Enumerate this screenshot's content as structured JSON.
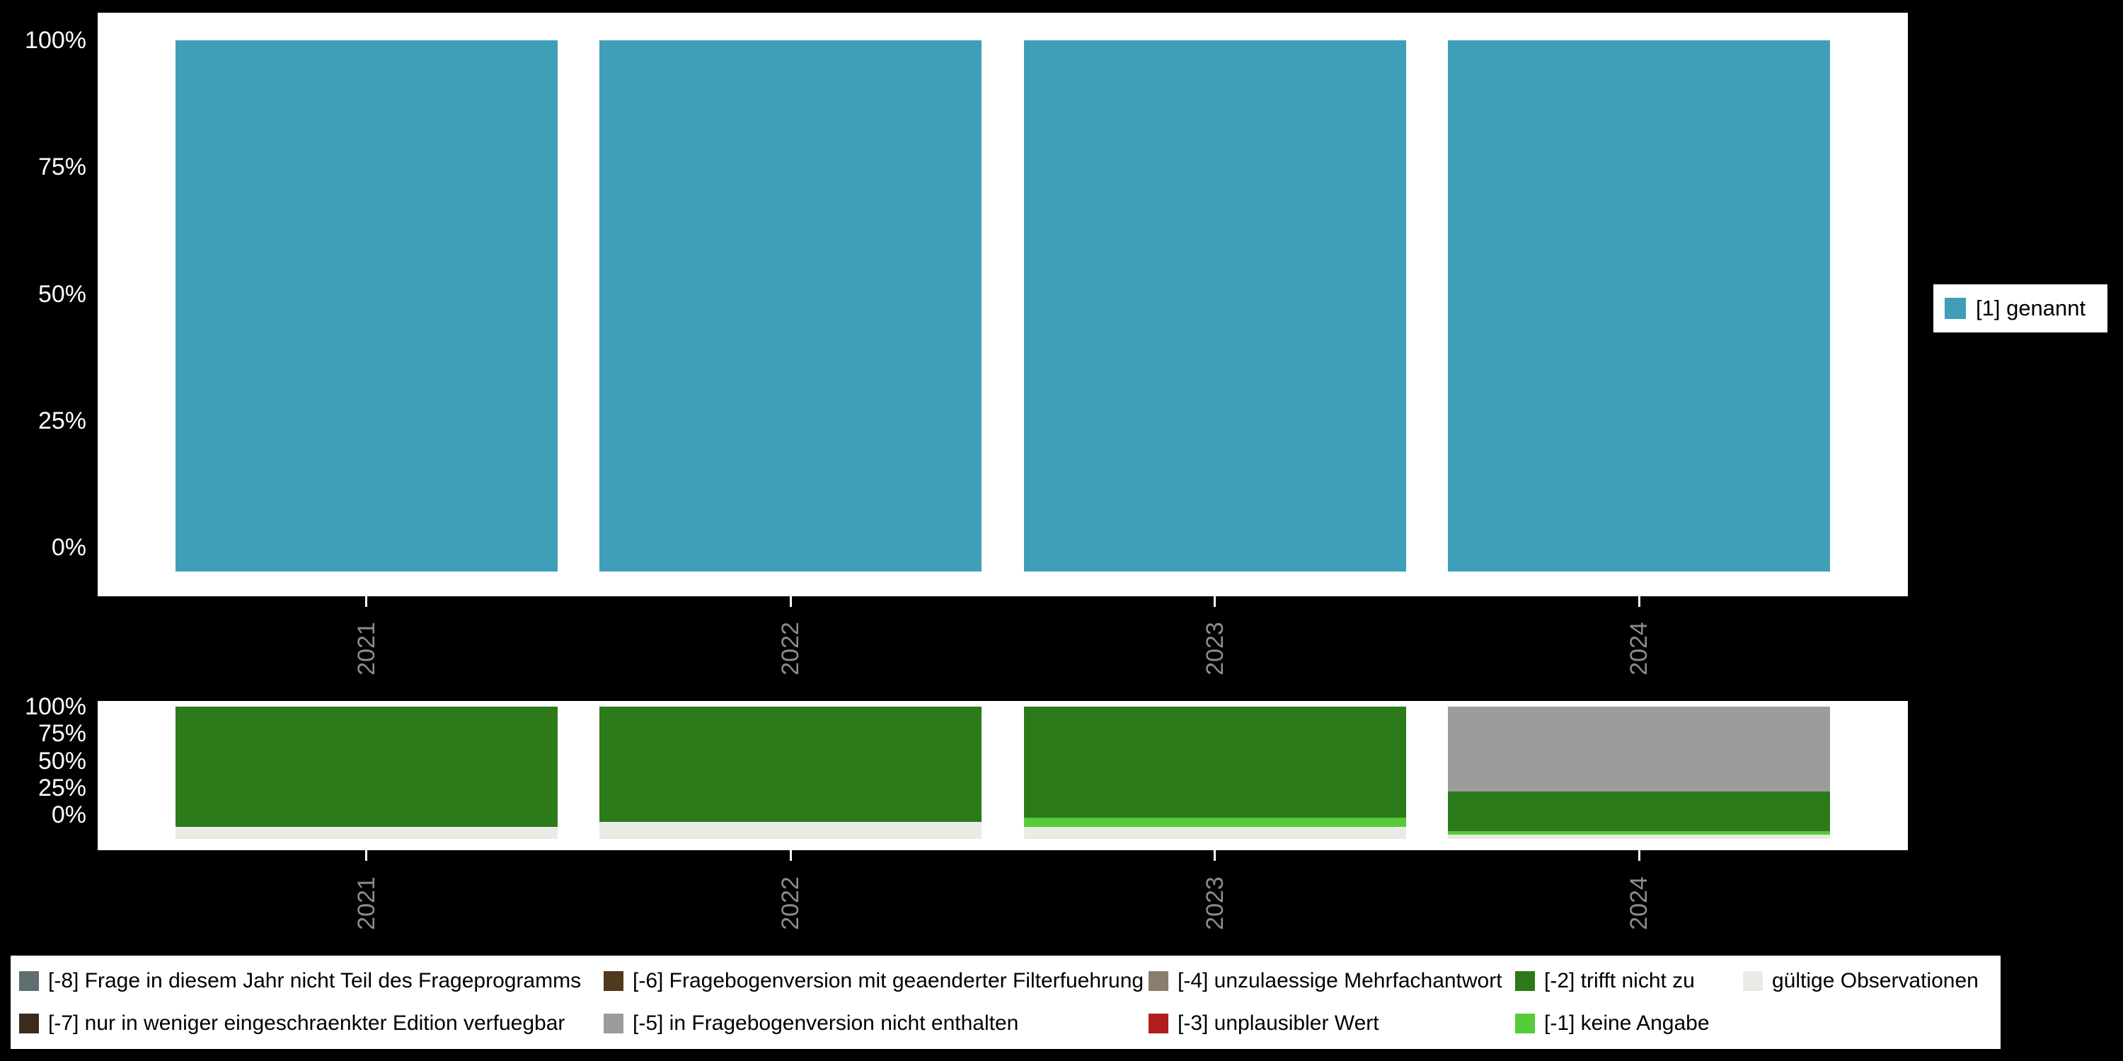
{
  "background": "#000000",
  "panel_bg": "#ffffff",
  "axis": {
    "ytick_color": "#ffffff",
    "xtick_label_color": "#8c8c8c"
  },
  "chart_data": [
    {
      "type": "bar",
      "stacked": true,
      "title": "",
      "categories": [
        "2021",
        "2022",
        "2023",
        "2024"
      ],
      "series": [
        {
          "name": "[1] genannt",
          "color": "#3f9fb8",
          "values": [
            100,
            100,
            100,
            100
          ]
        }
      ],
      "ylim": [
        0,
        100
      ],
      "yticks": [
        "100%",
        "75%",
        "50%",
        "25%",
        "0%"
      ],
      "grid": false,
      "legend_position": "right"
    },
    {
      "type": "bar",
      "stacked": true,
      "title": "",
      "categories": [
        "2021",
        "2022",
        "2023",
        "2024"
      ],
      "series": [
        {
          "name": "[-5] in Fragebogenversion nicht enthalten",
          "color": "#9c9c9a",
          "values": [
            0,
            0,
            0,
            64
          ]
        },
        {
          "name": "[-2] trifft nicht zu",
          "color": "#2d7a1b",
          "values": [
            91,
            87,
            84,
            30
          ]
        },
        {
          "name": "[-1] keine Angabe",
          "color": "#55cb3a",
          "values": [
            0,
            0,
            7,
            3
          ]
        },
        {
          "name": "gültige Observationen",
          "color": "#e9ece4",
          "values": [
            9,
            13,
            9,
            3
          ]
        }
      ],
      "ylim": [
        0,
        100
      ],
      "yticks": [
        "100%",
        "75%",
        "50%",
        "25%",
        "0%"
      ],
      "grid": false,
      "legend_position": "bottom"
    }
  ],
  "legend_right": {
    "label": "[1] genannt",
    "color": "#3f9fb8"
  },
  "bottom_legend": {
    "items": [
      {
        "label": "[-8] Frage in diesem Jahr nicht Teil des Frageprogramms",
        "color": "#5f6e70"
      },
      {
        "label": "[-6] Fragebogenversion mit geaenderter Filterfuehrung",
        "color": "#4f3a1e"
      },
      {
        "label": "[-4] unzulaessige Mehrfachantwort",
        "color": "#8a7d6b"
      },
      {
        "label": "[-2] trifft nicht zu",
        "color": "#2d7a1b"
      },
      {
        "label": "gültige Observationen",
        "color": "#e9ece4"
      },
      {
        "label": "[-7] nur in weniger eingeschraenkter Edition verfuegbar",
        "color": "#3c2c1b"
      },
      {
        "label": "[-5] in Fragebogenversion nicht enthalten",
        "color": "#9c9c9a"
      },
      {
        "label": "[-3] unplausibler Wert",
        "color": "#b21e1e"
      },
      {
        "label": "[-1] keine Angabe",
        "color": "#55cb3a"
      },
      null
    ]
  }
}
